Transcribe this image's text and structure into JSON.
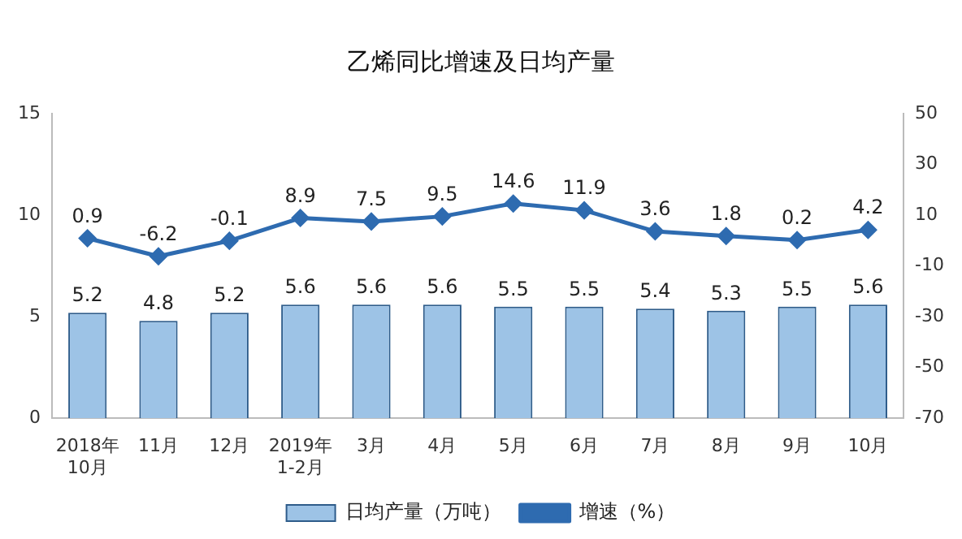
{
  "chart_data": {
    "type": "bar",
    "title": "乙烯同比增速及日均产量",
    "categories": [
      "2018年\n10月",
      "11月",
      "12月",
      "2019年\n1-2月",
      "3月",
      "4月",
      "5月",
      "6月",
      "7月",
      "8月",
      "9月",
      "10月"
    ],
    "series": [
      {
        "name": "日均产量（万吨）",
        "color": "#9dc3e6",
        "values": [
          5.2,
          4.8,
          5.2,
          5.6,
          5.6,
          5.6,
          5.5,
          5.5,
          5.4,
          5.3,
          5.5,
          5.6
        ]
      },
      {
        "name": "增速（%）",
        "type": "line",
        "axis": "y2",
        "color": "#2e6bb0",
        "values": [
          0.9,
          -6.2,
          -0.1,
          8.9,
          7.5,
          9.5,
          14.6,
          11.9,
          3.6,
          1.8,
          0.2,
          4.2
        ]
      }
    ],
    "ylim": [
      0,
      15
    ],
    "yticks": [
      0,
      5,
      10,
      15
    ],
    "y2lim": [
      -70,
      50
    ],
    "y2ticks": [
      -70,
      -50,
      -30,
      -10,
      10,
      30,
      50
    ],
    "data_labels": true,
    "legend": "bottom",
    "marker": "diamond",
    "grid": false
  }
}
